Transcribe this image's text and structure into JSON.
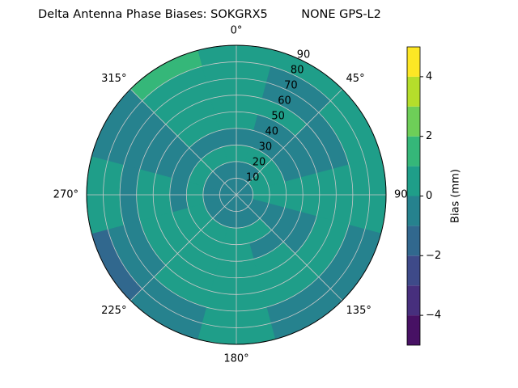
{
  "chart_data": {
    "type": "polar_contour",
    "title": "Delta Antenna Phase Biases: SOKGRX5         NONE GPS-L2",
    "colorbar_label": "Bias (mm)",
    "az_bins": [
      -15,
      15,
      45,
      75,
      105,
      135,
      165,
      195,
      225,
      255,
      285,
      315,
      345
    ],
    "r_bins": [
      0,
      10,
      20,
      30,
      40,
      50,
      60,
      70,
      80,
      90
    ],
    "values": [
      [
        -0.5,
        -0.5,
        -0.5,
        -0.5,
        -0.5,
        -0.5,
        -0.5,
        -0.5,
        -0.5,
        -0.5,
        -0.5,
        -0.5
      ],
      [
        -0.5,
        -0.5,
        0.5,
        0.5,
        -0.5,
        -0.5,
        -0.5,
        -0.5,
        -0.5,
        -0.5,
        -0.5,
        -0.5
      ],
      [
        0.5,
        0.5,
        0.5,
        0.5,
        -0.5,
        0.5,
        0.5,
        0.5,
        0.5,
        0.5,
        0.5,
        0.5
      ],
      [
        -0.5,
        -0.5,
        -0.5,
        0.5,
        -0.5,
        -0.5,
        0.5,
        0.5,
        0.5,
        -0.5,
        -0.5,
        -0.5
      ],
      [
        0.5,
        -0.5,
        -0.5,
        0.5,
        -0.5,
        0.5,
        0.5,
        0.5,
        0.5,
        0.5,
        -0.5,
        0.5
      ],
      [
        0.5,
        0.5,
        -0.5,
        0.5,
        0.5,
        0.5,
        0.5,
        0.5,
        0.5,
        0.5,
        -0.5,
        0.5
      ],
      [
        0.5,
        -0.5,
        -0.5,
        0.5,
        0.5,
        0.5,
        0.5,
        0.5,
        -0.5,
        -0.5,
        -0.5,
        0.5
      ],
      [
        0.5,
        -0.5,
        0.5,
        0.5,
        -0.5,
        -0.5,
        0.5,
        -0.5,
        -0.5,
        0.5,
        -0.5,
        0.5
      ],
      [
        0.5,
        0.5,
        0.5,
        0.5,
        -0.5,
        -0.5,
        0.5,
        -0.5,
        -1.5,
        0.5,
        -0.5,
        1.5
      ]
    ],
    "levels": [
      -5,
      -4,
      -3,
      -2,
      -1,
      0,
      1,
      2,
      3,
      4,
      5
    ],
    "level_colors": [
      "#471164",
      "#472f7d",
      "#3e4a89",
      "#31688e",
      "#26828e",
      "#1f9e89",
      "#35b779",
      "#6ece58",
      "#b5de2b",
      "#fde725"
    ],
    "rlim": [
      0,
      90
    ],
    "rticks": [
      10,
      20,
      30,
      40,
      50,
      60,
      70,
      80,
      90
    ],
    "thetaticks": [
      {
        "value": 0,
        "label": "0°"
      },
      {
        "value": 45,
        "label": "45°"
      },
      {
        "value": 90,
        "label": "90°"
      },
      {
        "value": 135,
        "label": "135°"
      },
      {
        "value": 180,
        "label": "180°"
      },
      {
        "value": 225,
        "label": "225°"
      },
      {
        "value": 270,
        "label": "270°"
      },
      {
        "value": 315,
        "label": "315°"
      }
    ],
    "clim": [
      -5,
      5
    ],
    "cticks": [
      {
        "value": -4,
        "label": "−4"
      },
      {
        "value": -2,
        "label": "−2"
      },
      0,
      2,
      4
    ],
    "grid": true
  }
}
